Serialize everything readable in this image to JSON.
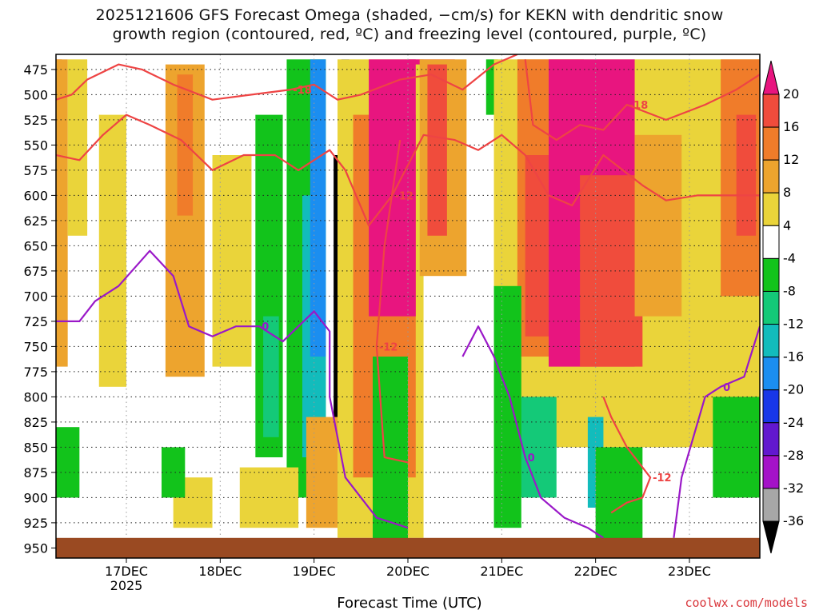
{
  "header": {
    "title_line1": "2025121606 GFS Forecast Omega (shaded, −cm/s) for KEKN with dendritic snow",
    "title_line2": "growth region (contoured, red, ºC) and freezing level (contoured, purple, ºC)"
  },
  "footer": {
    "xlabel": "Forecast Time (UTC)",
    "credit": "coolwx.com/models"
  },
  "chart_data": {
    "type": "heatmap",
    "title": "2025121606 GFS Forecast Omega for KEKN",
    "xlabel": "Forecast Time (UTC)",
    "ylabel": "Pressure (hPa)",
    "x_range_hours": [
      0,
      180
    ],
    "y_range_hpa": [
      460,
      960
    ],
    "y_ticks": [
      475,
      500,
      525,
      550,
      575,
      600,
      625,
      650,
      675,
      700,
      725,
      750,
      775,
      800,
      825,
      850,
      875,
      900,
      925,
      950
    ],
    "x_ticks": [
      {
        "label": "17DEC",
        "sub": "2025",
        "hour": 18
      },
      {
        "label": "18DEC",
        "sub": "",
        "hour": 42
      },
      {
        "label": "19DEC",
        "sub": "",
        "hour": 66
      },
      {
        "label": "20DEC",
        "sub": "",
        "hour": 90
      },
      {
        "label": "21DEC",
        "sub": "",
        "hour": 114
      },
      {
        "label": "22DEC",
        "sub": "",
        "hour": 138
      },
      {
        "label": "23DEC",
        "sub": "",
        "hour": 162
      }
    ],
    "colorbar": {
      "labels": [
        "20",
        "16",
        "12",
        "8",
        "4",
        "-4",
        "-8",
        "-12",
        "-16",
        "-20",
        "-24",
        "-28",
        "-32",
        "-36"
      ],
      "bins": [
        {
          "min": 20,
          "max": 24,
          "color": "#e8157f"
        },
        {
          "min": 16,
          "max": 20,
          "color": "#f04c3c"
        },
        {
          "min": 12,
          "max": 16,
          "color": "#f07c2a"
        },
        {
          "min": 8,
          "max": 12,
          "color": "#eda42e"
        },
        {
          "min": 4,
          "max": 8,
          "color": "#ead43a"
        },
        {
          "min": -4,
          "max": 4,
          "color": "#ffffff"
        },
        {
          "min": -8,
          "max": -4,
          "color": "#12c31b"
        },
        {
          "min": -12,
          "max": -8,
          "color": "#14c978"
        },
        {
          "min": -16,
          "max": -12,
          "color": "#12bcbc"
        },
        {
          "min": -20,
          "max": -16,
          "color": "#1b8ef0"
        },
        {
          "min": -24,
          "max": -20,
          "color": "#1837e8"
        },
        {
          "min": -28,
          "max": -24,
          "color": "#6218cf"
        },
        {
          "min": -32,
          "max": -28,
          "color": "#a412c8"
        },
        {
          "min": -36,
          "max": -32,
          "color": "#a7a7a7"
        },
        {
          "min": -40,
          "max": -36,
          "color": "#000000"
        }
      ],
      "top_arrow_color": "#e8157f",
      "bottom_arrow_color": "#000000"
    },
    "omega_regions": [
      {
        "value": 18,
        "t0": 0,
        "t1": 1.5,
        "p0": 465,
        "p1": 650
      },
      {
        "value": 10,
        "t0": 0,
        "t1": 3,
        "p0": 465,
        "p1": 770
      },
      {
        "value": 6,
        "t0": 3,
        "t1": 8,
        "p0": 465,
        "p1": 640
      },
      {
        "value": 6,
        "t0": 11,
        "t1": 18,
        "p0": 520,
        "p1": 790
      },
      {
        "value": 10,
        "t0": 28,
        "t1": 38,
        "p0": 470,
        "p1": 780
      },
      {
        "value": 14,
        "t0": 31,
        "t1": 35,
        "p0": 480,
        "p1": 620
      },
      {
        "value": 6,
        "t0": 40,
        "t1": 50,
        "p0": 560,
        "p1": 770
      },
      {
        "value": -6,
        "t0": 51,
        "t1": 58,
        "p0": 520,
        "p1": 860
      },
      {
        "value": -10,
        "t0": 53,
        "t1": 57,
        "p0": 720,
        "p1": 840
      },
      {
        "value": -6,
        "t0": 59,
        "t1": 69,
        "p0": 465,
        "p1": 900
      },
      {
        "value": -14,
        "t0": 63,
        "t1": 69,
        "p0": 600,
        "p1": 860
      },
      {
        "value": -18,
        "t0": 65,
        "t1": 69,
        "p0": 465,
        "p1": 760
      },
      {
        "value": -38,
        "t0": 71,
        "t1": 72,
        "p0": 560,
        "p1": 910
      },
      {
        "value": -22,
        "t0": 73,
        "t1": 75,
        "p0": 465,
        "p1": 620
      },
      {
        "value": 10,
        "t0": 64,
        "t1": 72,
        "p0": 820,
        "p1": 930
      },
      {
        "value": 6,
        "t0": 47,
        "t1": 62,
        "p0": 870,
        "p1": 930
      },
      {
        "value": 6,
        "t0": 72,
        "t1": 94,
        "p0": 465,
        "p1": 940
      },
      {
        "value": 12,
        "t0": 76,
        "t1": 92,
        "p0": 520,
        "p1": 880
      },
      {
        "value": 22,
        "t0": 80,
        "t1": 92,
        "p0": 465,
        "p1": 720
      },
      {
        "value": 22,
        "t0": 90,
        "t1": 102,
        "p0": 465,
        "p1": 470
      },
      {
        "value": -6,
        "t0": 81,
        "t1": 90,
        "p0": 760,
        "p1": 945
      },
      {
        "value": 10,
        "t0": 93,
        "t1": 105,
        "p0": 465,
        "p1": 680
      },
      {
        "value": 16,
        "t0": 95,
        "t1": 100,
        "p0": 470,
        "p1": 640
      },
      {
        "value": -6,
        "t0": 110,
        "t1": 113,
        "p0": 465,
        "p1": 520
      },
      {
        "value": 6,
        "t0": 112,
        "t1": 180,
        "p0": 465,
        "p1": 850
      },
      {
        "value": 12,
        "t0": 118,
        "t1": 135,
        "p0": 465,
        "p1": 760
      },
      {
        "value": 18,
        "t0": 120,
        "t1": 136,
        "p0": 560,
        "p1": 740
      },
      {
        "value": 22,
        "t0": 126,
        "t1": 148,
        "p0": 465,
        "p1": 770
      },
      {
        "value": 16,
        "t0": 134,
        "t1": 150,
        "p0": 580,
        "p1": 770
      },
      {
        "value": 10,
        "t0": 148,
        "t1": 160,
        "p0": 540,
        "p1": 720
      },
      {
        "value": 14,
        "t0": 170,
        "t1": 180,
        "p0": 465,
        "p1": 700
      },
      {
        "value": 18,
        "t0": 174,
        "t1": 179,
        "p0": 520,
        "p1": 640
      },
      {
        "value": -10,
        "t0": 116,
        "t1": 128,
        "p0": 800,
        "p1": 900
      },
      {
        "value": -6,
        "t0": 112,
        "t1": 119,
        "p0": 690,
        "p1": 930
      },
      {
        "value": -14,
        "t0": 136,
        "t1": 140,
        "p0": 820,
        "p1": 910
      },
      {
        "value": -6,
        "t0": 138,
        "t1": 150,
        "p0": 850,
        "p1": 945
      },
      {
        "value": -6,
        "t0": 168,
        "t1": 180,
        "p0": 800,
        "p1": 900
      },
      {
        "value": -6,
        "t0": 0,
        "t1": 6,
        "p0": 830,
        "p1": 900
      },
      {
        "value": 6,
        "t0": 30,
        "t1": 40,
        "p0": 880,
        "p1": 930
      },
      {
        "value": -6,
        "t0": 27,
        "t1": 33,
        "p0": 850,
        "p1": 900
      }
    ],
    "dgz_contours": [
      {
        "label": "-18",
        "points": [
          [
            0,
            505
          ],
          [
            4,
            500
          ],
          [
            8,
            485
          ],
          [
            16,
            470
          ],
          [
            22,
            475
          ],
          [
            30,
            490
          ],
          [
            40,
            505
          ],
          [
            50,
            500
          ],
          [
            60,
            495
          ],
          [
            66,
            490
          ],
          [
            72,
            505
          ],
          [
            78,
            500
          ],
          [
            88,
            485
          ],
          [
            96,
            480
          ],
          [
            104,
            495
          ],
          [
            112,
            470
          ],
          [
            118,
            460
          ]
        ]
      },
      {
        "label": "-12",
        "points": [
          [
            0,
            560
          ],
          [
            6,
            565
          ],
          [
            12,
            540
          ],
          [
            18,
            520
          ],
          [
            24,
            530
          ],
          [
            32,
            545
          ],
          [
            40,
            575
          ],
          [
            48,
            560
          ],
          [
            56,
            560
          ],
          [
            62,
            575
          ],
          [
            70,
            555
          ],
          [
            74,
            575
          ],
          [
            80,
            630
          ],
          [
            86,
            600
          ],
          [
            94,
            540
          ],
          [
            102,
            545
          ],
          [
            108,
            555
          ],
          [
            114,
            540
          ],
          [
            120,
            560
          ],
          [
            126,
            600
          ],
          [
            132,
            610
          ],
          [
            140,
            560
          ],
          [
            150,
            590
          ],
          [
            156,
            605
          ],
          [
            164,
            600
          ],
          [
            172,
            600
          ],
          [
            180,
            600
          ]
        ]
      },
      {
        "label": "-18",
        "points": [
          [
            120,
            465
          ],
          [
            122,
            530
          ],
          [
            128,
            545
          ],
          [
            134,
            530
          ],
          [
            140,
            535
          ],
          [
            146,
            510
          ],
          [
            156,
            525
          ],
          [
            166,
            510
          ],
          [
            174,
            495
          ],
          [
            180,
            480
          ]
        ]
      },
      {
        "label": "-12",
        "points": [
          [
            88,
            545
          ],
          [
            84,
            650
          ],
          [
            82,
            750
          ],
          [
            84,
            860
          ],
          [
            90,
            865
          ]
        ]
      },
      {
        "label": "-12",
        "points": [
          [
            140,
            800
          ],
          [
            142,
            820
          ],
          [
            146,
            850
          ],
          [
            152,
            880
          ],
          [
            150,
            900
          ],
          [
            146,
            905
          ],
          [
            142,
            915
          ]
        ]
      }
    ],
    "freezing_level": [
      {
        "label": "0",
        "points": [
          [
            0,
            725
          ],
          [
            6,
            725
          ],
          [
            10,
            705
          ],
          [
            16,
            690
          ],
          [
            24,
            655
          ],
          [
            30,
            680
          ],
          [
            34,
            730
          ],
          [
            40,
            740
          ],
          [
            46,
            730
          ],
          [
            52,
            730
          ],
          [
            58,
            745
          ],
          [
            62,
            730
          ],
          [
            66,
            715
          ],
          [
            70,
            735
          ],
          [
            70,
            800
          ],
          [
            74,
            880
          ],
          [
            82,
            920
          ],
          [
            90,
            930
          ]
        ]
      },
      {
        "label": "0",
        "points": [
          [
            104,
            760
          ],
          [
            108,
            730
          ],
          [
            112,
            760
          ],
          [
            116,
            800
          ],
          [
            120,
            860
          ],
          [
            124,
            900
          ],
          [
            130,
            920
          ],
          [
            136,
            930
          ],
          [
            140,
            940
          ]
        ]
      },
      {
        "label": "0",
        "points": [
          [
            158,
            940
          ],
          [
            160,
            880
          ],
          [
            166,
            800
          ],
          [
            170,
            790
          ],
          [
            176,
            780
          ],
          [
            180,
            730
          ]
        ]
      }
    ],
    "terrain_pressure_hpa": 940
  }
}
